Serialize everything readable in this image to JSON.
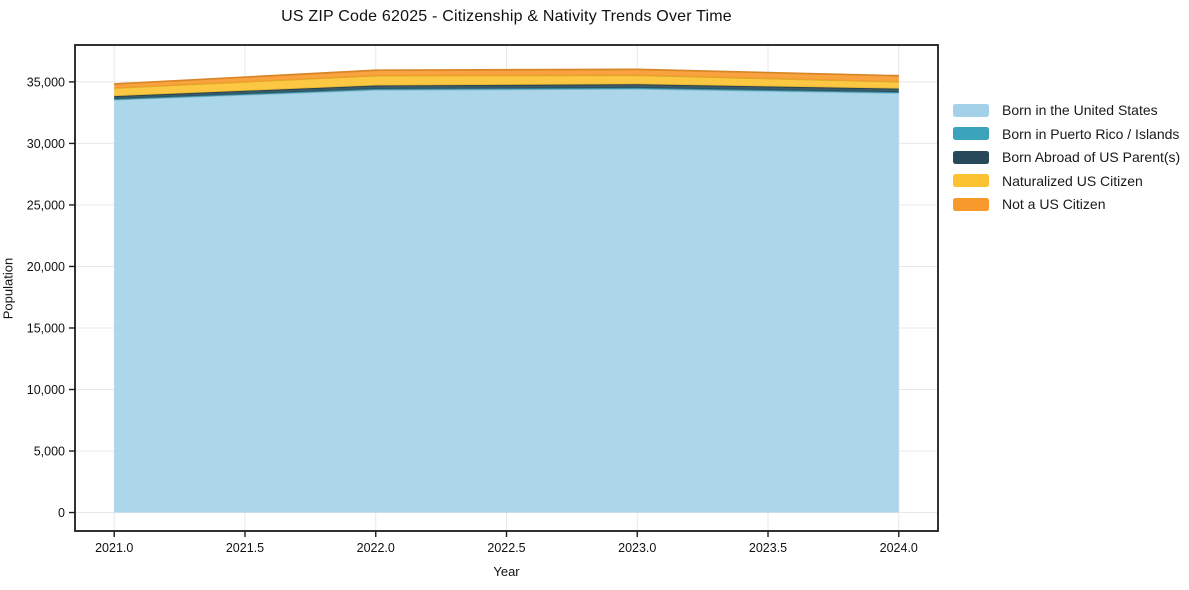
{
  "chart_data": {
    "type": "area",
    "stacked": true,
    "title": "US ZIP Code 62025 - Citizenship & Nativity Trends Over Time",
    "xlabel": "Year",
    "ylabel": "Population",
    "x": [
      2021,
      2022,
      2023,
      2024
    ],
    "series": [
      {
        "key": "born-us",
        "name": "Born in the United States",
        "color": "#a3d2e8",
        "values": [
          33550,
          34350,
          34430,
          34100
        ]
      },
      {
        "key": "born-pr",
        "name": "Born in Puerto Rico / Islands",
        "color": "#3ba3bb",
        "values": [
          60,
          80,
          90,
          70
        ]
      },
      {
        "key": "born-abroad",
        "name": "Born Abroad of US Parent(s)",
        "color": "#27495a",
        "values": [
          230,
          280,
          290,
          280
        ]
      },
      {
        "key": "naturalized",
        "name": "Naturalized US Citizen",
        "color": "#fcc230",
        "values": [
          660,
          800,
          730,
          560
        ]
      },
      {
        "key": "not-citizen",
        "name": "Not a US Citizen",
        "color": "#f8992b",
        "values": [
          330,
          440,
          480,
          490
        ]
      }
    ],
    "xlim": [
      2020.85,
      2024.15
    ],
    "ylim": [
      -1500,
      38000
    ],
    "xticks": {
      "values": [
        2021.0,
        2021.5,
        2022.0,
        2022.5,
        2023.0,
        2023.5,
        2024.0
      ],
      "labels": [
        "2021.0",
        "2021.5",
        "2022.0",
        "2022.5",
        "2023.0",
        "2023.5",
        "2024.0"
      ]
    },
    "yticks": {
      "values": [
        0,
        5000,
        10000,
        15000,
        20000,
        25000,
        30000,
        35000
      ],
      "labels": [
        "0",
        "5,000",
        "10,000",
        "15,000",
        "20,000",
        "25,000",
        "30,000",
        "35,000"
      ]
    },
    "grid": true,
    "legend_position": "right-outside",
    "colors": {
      "spine": "#1c1c1c",
      "grid": "#e8e8e8",
      "tick_text": "#111111",
      "background": "#ffffff"
    }
  }
}
